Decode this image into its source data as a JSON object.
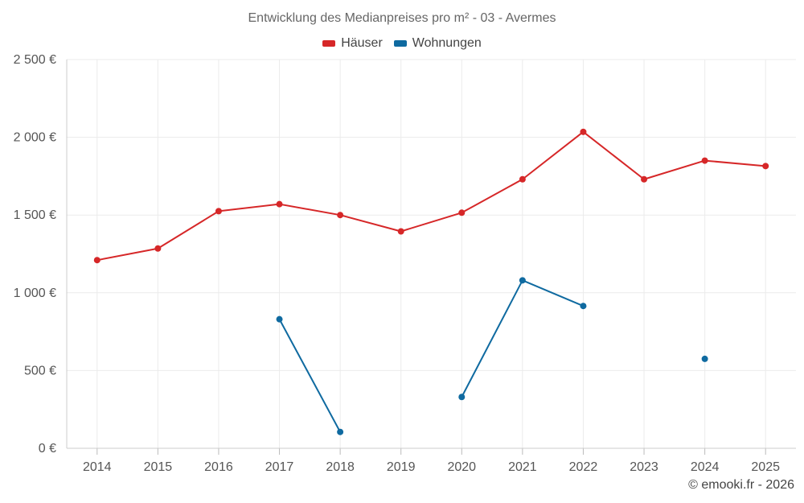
{
  "chart_data": {
    "type": "line",
    "title": "Entwicklung des Medianpreises pro m² - 03 - Avermes",
    "xlabel": "",
    "ylabel": "",
    "categories": [
      "2014",
      "2015",
      "2016",
      "2017",
      "2018",
      "2019",
      "2020",
      "2021",
      "2022",
      "2023",
      "2024",
      "2025"
    ],
    "ylim": [
      0,
      2500
    ],
    "yticks": [
      0,
      500,
      1000,
      1500,
      2000,
      2500
    ],
    "ytick_labels": [
      "0 €",
      "500 €",
      "1 000 €",
      "1 500 €",
      "2 000 €",
      "2 500 €"
    ],
    "grid": true,
    "legend_position": "top-center",
    "series": [
      {
        "name": "Häuser",
        "color": "#d62728",
        "values": [
          1210,
          1285,
          1525,
          1570,
          1500,
          1395,
          1515,
          1730,
          2035,
          1730,
          1850,
          1815
        ]
      },
      {
        "name": "Wohnungen",
        "color": "#0f6aa0",
        "values": [
          null,
          null,
          null,
          830,
          105,
          null,
          330,
          1080,
          915,
          null,
          575,
          null
        ]
      }
    ]
  },
  "credit": "© emooki.fr - 2026"
}
